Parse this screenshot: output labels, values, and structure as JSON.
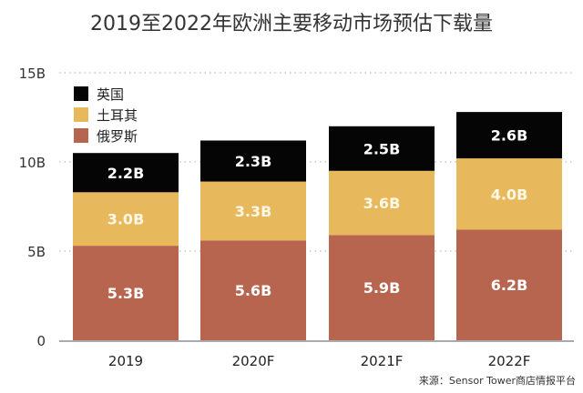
{
  "chart_data": {
    "type": "bar",
    "stacked": true,
    "title": "2019至2022年欧洲主要移动市场预估下载量",
    "categories": [
      "2019",
      "2020F",
      "2021F",
      "2022F"
    ],
    "series": [
      {
        "name": "俄罗斯",
        "color": "#b8654f",
        "values": [
          5.3,
          5.6,
          5.9,
          6.2
        ],
        "labels": [
          "5.3B",
          "5.6B",
          "5.9B",
          "6.2B"
        ]
      },
      {
        "name": "土耳其",
        "color": "#e7b85c",
        "values": [
          3.0,
          3.3,
          3.6,
          4.0
        ],
        "labels": [
          "3.0B",
          "3.3B",
          "3.6B",
          "4.0B"
        ]
      },
      {
        "name": "英国",
        "color": "#050505",
        "values": [
          2.2,
          2.3,
          2.5,
          2.6
        ],
        "labels": [
          "2.2B",
          "2.3B",
          "2.5B",
          "2.6B"
        ]
      }
    ],
    "legend_order": [
      "英国",
      "土耳其",
      "俄罗斯"
    ],
    "legend_position": "top-left",
    "yticks": [
      0,
      5,
      10,
      15
    ],
    "ytick_labels": [
      "0",
      "5B",
      "10B",
      "15B"
    ],
    "ylim": [
      0,
      15
    ],
    "grid": "dotted horizontal",
    "xlabel": "",
    "ylabel": ""
  },
  "source": "来源：Sensor Tower商店情报平台"
}
